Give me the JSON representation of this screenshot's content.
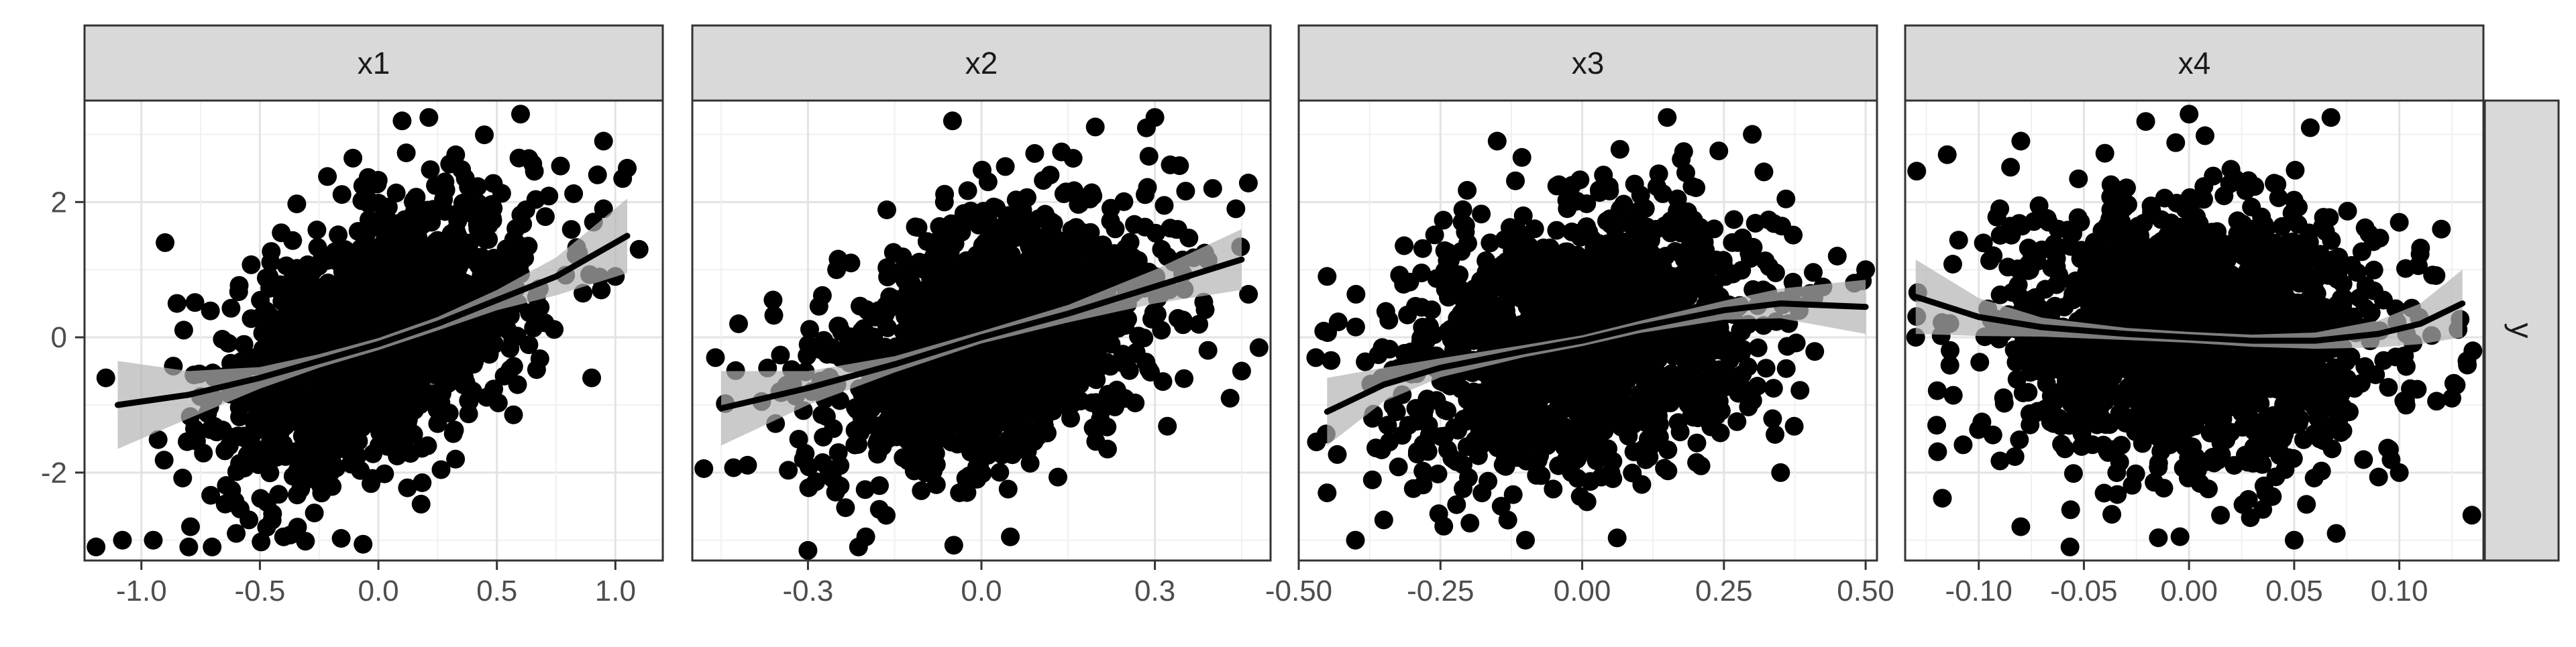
{
  "chart_data": {
    "type": "scatter",
    "y_facet_label": "y",
    "y_axis": {
      "ylim": [
        -3.3,
        3.5
      ],
      "tick_values": [
        -2,
        0,
        2
      ],
      "tick_labels": [
        "-2",
        "0",
        "2"
      ]
    },
    "grid": true,
    "point_color": "#000000",
    "smooth_color": "#000000",
    "band_color": "#b3b3b3",
    "strip_fill": "#d9d9d9",
    "panels": [
      {
        "name": "x1",
        "xlim": [
          -1.24,
          1.2
        ],
        "x_ticks": [
          -1.0,
          -0.5,
          0.0,
          0.5,
          1.0
        ],
        "x_tick_labels": [
          "-1.0",
          "-0.5",
          "0.0",
          "0.5",
          "1.0"
        ],
        "x_center": 0.0,
        "x_sd": 0.32,
        "slope": 1.6,
        "smooth": {
          "x": [
            -1.1,
            -0.8,
            -0.5,
            -0.25,
            0.0,
            0.25,
            0.5,
            0.75,
            1.05
          ],
          "y": [
            -1.0,
            -0.85,
            -0.6,
            -0.35,
            -0.1,
            0.2,
            0.55,
            0.9,
            1.5
          ],
          "se": [
            0.65,
            0.35,
            0.16,
            0.1,
            0.09,
            0.1,
            0.15,
            0.28,
            0.55
          ]
        },
        "extremes": [
          [
            -1.15,
            -0.6
          ],
          [
            -1.08,
            -3.0
          ],
          [
            -0.95,
            -3.0
          ],
          [
            -0.8,
            -3.1
          ],
          [
            -0.9,
            1.4
          ],
          [
            0.95,
            2.9
          ],
          [
            1.1,
            1.3
          ],
          [
            1.05,
            2.5
          ],
          [
            0.9,
            -0.6
          ],
          [
            0.1,
            3.2
          ],
          [
            0.6,
            3.3
          ],
          [
            -0.6,
            -2.9
          ],
          [
            -0.4,
            -2.95
          ],
          [
            0.95,
            1.9
          ],
          [
            -0.85,
            0.5
          ],
          [
            1.0,
            0.9
          ]
        ]
      },
      {
        "name": "x2",
        "xlim": [
          -0.5,
          0.5
        ],
        "x_ticks": [
          -0.3,
          0.0,
          0.3
        ],
        "x_tick_labels": [
          "-0.3",
          "0.0",
          "0.3"
        ],
        "x_center": 0.02,
        "x_sd": 0.14,
        "slope": 2.3,
        "smooth": {
          "x": [
            -0.45,
            -0.3,
            -0.15,
            0.0,
            0.15,
            0.3,
            0.45
          ],
          "y": [
            -1.05,
            -0.75,
            -0.4,
            0.0,
            0.35,
            0.75,
            1.15
          ],
          "se": [
            0.55,
            0.25,
            0.12,
            0.09,
            0.13,
            0.25,
            0.45
          ]
        },
        "extremes": [
          [
            -0.46,
            -0.3
          ],
          [
            -0.38,
            -0.95
          ],
          [
            -0.3,
            -3.15
          ],
          [
            -0.05,
            3.2
          ],
          [
            0.3,
            3.25
          ],
          [
            0.44,
            1.9
          ],
          [
            0.45,
            -0.5
          ],
          [
            0.43,
            -0.9
          ],
          [
            -0.42,
            0.2
          ],
          [
            0.4,
            2.2
          ],
          [
            -0.2,
            -2.95
          ],
          [
            0.05,
            -2.95
          ]
        ]
      },
      {
        "name": "x3",
        "xlim": [
          -0.5,
          0.52
        ],
        "x_ticks": [
          -0.5,
          -0.25,
          0.0,
          0.25,
          0.5
        ],
        "x_tick_labels": [
          "-0.50",
          "-0.25",
          "0.00",
          "0.25",
          "0.50"
        ],
        "x_center": 0.0,
        "x_sd": 0.16,
        "slope": 1.5,
        "smooth": {
          "x": [
            -0.45,
            -0.35,
            -0.25,
            -0.1,
            0.0,
            0.1,
            0.25,
            0.35,
            0.5
          ],
          "y": [
            -1.1,
            -0.7,
            -0.45,
            -0.2,
            -0.05,
            0.15,
            0.4,
            0.5,
            0.45
          ],
          "se": [
            0.5,
            0.25,
            0.14,
            0.09,
            0.08,
            0.09,
            0.14,
            0.22,
            0.4
          ]
        },
        "extremes": [
          [
            -0.47,
            -0.3
          ],
          [
            -0.45,
            -2.3
          ],
          [
            -0.4,
            -3.0
          ],
          [
            -0.1,
            -3.0
          ],
          [
            -0.15,
            2.9
          ],
          [
            0.15,
            3.25
          ],
          [
            0.5,
            1.0
          ],
          [
            0.48,
            0.8
          ],
          [
            -0.35,
            -2.7
          ],
          [
            0.35,
            -2.0
          ],
          [
            -0.45,
            0.9
          ],
          [
            0.45,
            1.2
          ],
          [
            0.3,
            3.0
          ]
        ]
      },
      {
        "name": "x4",
        "xlim": [
          -0.135,
          0.14
        ],
        "x_ticks": [
          -0.1,
          -0.05,
          0.0,
          0.05,
          0.1
        ],
        "x_tick_labels": [
          "-0.10",
          "-0.05",
          "0.00",
          "0.05",
          "0.10"
        ],
        "x_center": 0.0,
        "x_sd": 0.045,
        "slope": 0.0,
        "smooth": {
          "x": [
            -0.13,
            -0.1,
            -0.07,
            -0.03,
            0.0,
            0.03,
            0.06,
            0.09,
            0.11,
            0.13
          ],
          "y": [
            0.6,
            0.3,
            0.15,
            0.05,
            0.0,
            -0.05,
            -0.05,
            0.05,
            0.2,
            0.5
          ],
          "se": [
            0.55,
            0.28,
            0.14,
            0.09,
            0.08,
            0.09,
            0.12,
            0.2,
            0.3,
            0.5
          ]
        },
        "extremes": [
          [
            -0.13,
            0.0
          ],
          [
            -0.12,
            -1.3
          ],
          [
            -0.115,
            2.7
          ],
          [
            -0.09,
            1.9
          ],
          [
            0.1,
            1.7
          ],
          [
            0.12,
            1.6
          ],
          [
            0.135,
            -0.2
          ],
          [
            0.125,
            -0.9
          ],
          [
            0.1,
            -2.0
          ],
          [
            0.07,
            -2.9
          ],
          [
            0.0,
            3.3
          ],
          [
            -0.08,
            2.9
          ],
          [
            -0.08,
            -2.8
          ],
          [
            0.05,
            -3.0
          ]
        ]
      }
    ]
  }
}
